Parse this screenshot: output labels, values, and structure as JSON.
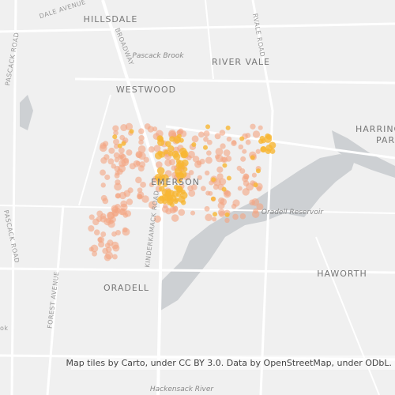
{
  "places": {
    "hillsdale": "HILLSDALE",
    "river_vale": "RIVER VALE",
    "westwood": "WESTWOOD",
    "harrington": "HARRING",
    "harrington_park": "PAR",
    "emerson": "EMERSON",
    "haworth": "HAWORTH",
    "oradell": "ORADELL"
  },
  "water": {
    "pascack_brook": "Pascack Brook",
    "oradell_reservoir": "Oradell Reservoir",
    "hackensack_river": "Hackensack River"
  },
  "roads": {
    "dale_avenue": "DALE AVENUE",
    "pascack_road_top": "PASCACK ROAD",
    "broadway": "BROADWAY",
    "rivervale_road": "RVALE ROAD",
    "kinderkamack_road": "KINDERKAMACK ROAD",
    "pascack_road_left": "PASCACK ROAD",
    "forest_avenue": "FOREST AVENUE",
    "cut_label": "ok"
  },
  "attribution": "Map tiles by Carto, under CC BY 3.0. Data by OpenStreetMap, under ODbL."
}
